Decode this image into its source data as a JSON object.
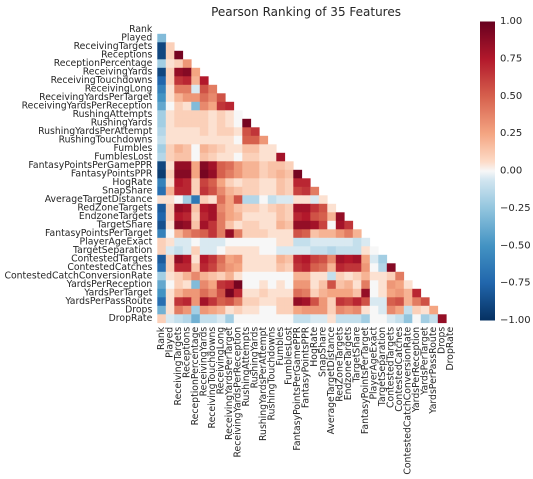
{
  "chart_data": {
    "type": "heatmap",
    "title": "Pearson Ranking of 35 Features",
    "features": [
      "Rank",
      "Played",
      "ReceivingTargets",
      "Receptions",
      "ReceptionPercentage",
      "ReceivingYards",
      "ReceivingTouchdowns",
      "ReceivingLong",
      "ReceivingYardsPerTarget",
      "ReceivingYardsPerReception",
      "RushingAttempts",
      "RushingYards",
      "RushingYardsPerAttempt",
      "RushingTouchdowns",
      "Fumbles",
      "FumblesLost",
      "FantasyPointsPerGamePPR",
      "FantasyPointsPPR",
      "HogRate",
      "SnapShare",
      "AverageTargetDistance",
      "RedZoneTargets",
      "EndzoneTargets",
      "TargetShare",
      "FantasyPointsPerTarget",
      "PlayerAgeExact",
      "TargetSeparation",
      "ContestedTargets",
      "ContestedCatches",
      "ContestedCatchConversionRate",
      "YardsPerReception",
      "YardsPerTarget",
      "YardsPerPassRoute",
      "Drops",
      "DropRate"
    ],
    "mask": "upper-triangle-and-diagonal",
    "colormap": "RdBu_r",
    "vmin": -1.0,
    "vmax": 1.0,
    "colorbar_ticks": [
      1.0,
      0.75,
      0.5,
      0.25,
      0.0,
      -0.25,
      -0.5,
      -0.75,
      -1.0
    ],
    "colorbar_tick_labels": [
      "1.00",
      "0.75",
      "0.50",
      "0.25",
      "0.00",
      "−0.25",
      "−0.50",
      "−0.75",
      "−1.00"
    ],
    "values_lower_triangle": [
      [],
      [
        -0.3
      ],
      [
        -0.9,
        0.1
      ],
      [
        -0.9,
        0.1,
        0.95
      ],
      [
        -0.2,
        0.05,
        0.1,
        0.3
      ],
      [
        -0.9,
        0.1,
        0.85,
        0.9,
        0.25
      ],
      [
        -0.75,
        0.1,
        0.65,
        0.7,
        0.2,
        0.75
      ],
      [
        -0.6,
        0.05,
        0.4,
        0.4,
        -0.05,
        0.55,
        0.4
      ],
      [
        -0.5,
        0.05,
        0.2,
        0.3,
        0.3,
        0.45,
        0.35,
        0.55
      ],
      [
        -0.4,
        0.0,
        0.1,
        0.05,
        -0.3,
        0.35,
        0.25,
        0.65,
        0.7
      ],
      [
        -0.2,
        0.05,
        0.1,
        0.1,
        0.1,
        0.1,
        0.05,
        0.1,
        0.05,
        0.0
      ],
      [
        -0.2,
        0.05,
        0.1,
        0.1,
        0.1,
        0.1,
        0.05,
        0.1,
        0.05,
        0.0,
        0.95
      ],
      [
        -0.15,
        0.05,
        0.05,
        0.05,
        0.05,
        0.1,
        0.05,
        0.1,
        0.1,
        0.05,
        0.55,
        0.65
      ],
      [
        -0.1,
        0.05,
        0.05,
        0.05,
        0.05,
        0.05,
        0.05,
        0.05,
        0.05,
        0.0,
        0.5,
        0.5,
        0.3
      ],
      [
        -0.2,
        0.1,
        0.2,
        0.15,
        0.0,
        0.2,
        0.15,
        0.1,
        0.05,
        0.05,
        0.15,
        0.15,
        0.05,
        0.05
      ],
      [
        -0.15,
        0.1,
        0.15,
        0.15,
        0.0,
        0.15,
        0.1,
        0.05,
        0.05,
        0.0,
        0.1,
        0.1,
        0.05,
        0.05,
        0.8
      ],
      [
        -0.9,
        0.05,
        0.85,
        0.85,
        0.25,
        0.9,
        0.8,
        0.5,
        0.45,
        0.3,
        0.2,
        0.2,
        0.1,
        0.15,
        0.15,
        0.1
      ],
      [
        -0.95,
        0.1,
        0.9,
        0.9,
        0.25,
        0.95,
        0.85,
        0.5,
        0.4,
        0.3,
        0.2,
        0.2,
        0.1,
        0.15,
        0.2,
        0.15,
        0.95
      ],
      [
        -0.6,
        0.05,
        0.75,
        0.7,
        0.1,
        0.6,
        0.5,
        0.25,
        0.1,
        0.05,
        0.1,
        0.1,
        0.05,
        0.05,
        0.15,
        0.1,
        0.7,
        0.7
      ],
      [
        -0.7,
        0.2,
        0.7,
        0.7,
        0.1,
        0.65,
        0.55,
        0.35,
        0.2,
        0.15,
        0.1,
        0.1,
        0.05,
        0.05,
        0.15,
        0.1,
        0.6,
        0.65,
        0.4
      ],
      [
        0.05,
        0.05,
        0.0,
        -0.2,
        -0.65,
        0.1,
        0.05,
        0.45,
        0.25,
        0.55,
        -0.15,
        -0.15,
        0.0,
        -0.1,
        -0.05,
        -0.05,
        0.05,
        0.05,
        -0.05,
        0.05
      ],
      [
        -0.8,
        0.1,
        0.85,
        0.8,
        0.15,
        0.75,
        0.8,
        0.35,
        0.25,
        0.15,
        0.1,
        0.1,
        0.05,
        0.1,
        0.15,
        0.1,
        0.8,
        0.8,
        0.65,
        0.55,
        0.05
      ],
      [
        -0.75,
        0.1,
        0.75,
        0.7,
        0.1,
        0.7,
        0.8,
        0.4,
        0.25,
        0.2,
        0.05,
        0.05,
        0.05,
        0.05,
        0.15,
        0.1,
        0.7,
        0.75,
        0.55,
        0.5,
        0.2,
        0.85
      ],
      [
        -0.85,
        0.05,
        0.9,
        0.85,
        0.15,
        0.8,
        0.65,
        0.4,
        0.15,
        0.05,
        0.1,
        0.1,
        0.05,
        0.05,
        0.2,
        0.15,
        0.85,
        0.85,
        0.8,
        0.6,
        0.0,
        0.8,
        0.65
      ],
      [
        -0.6,
        0.0,
        0.2,
        0.35,
        0.45,
        0.5,
        0.65,
        0.4,
        0.85,
        0.4,
        0.1,
        0.1,
        0.1,
        0.05,
        0.05,
        0.05,
        0.55,
        0.5,
        0.15,
        0.2,
        0.2,
        0.3,
        0.4,
        0.2
      ],
      [
        0.1,
        0.05,
        -0.05,
        -0.05,
        0.0,
        -0.05,
        -0.05,
        -0.05,
        0.0,
        0.0,
        0.0,
        0.0,
        0.0,
        0.0,
        0.05,
        0.05,
        -0.1,
        -0.1,
        -0.05,
        -0.05,
        -0.05,
        -0.05,
        -0.05,
        -0.1,
        -0.05
      ],
      [
        0.1,
        -0.05,
        -0.1,
        -0.05,
        0.1,
        -0.05,
        -0.05,
        0.0,
        0.05,
        0.05,
        0.05,
        0.05,
        0.0,
        0.0,
        -0.05,
        -0.05,
        -0.05,
        -0.05,
        -0.1,
        -0.1,
        -0.15,
        -0.1,
        -0.1,
        -0.1,
        0.05,
        0.0
      ],
      [
        -0.8,
        0.1,
        0.85,
        0.75,
        0.05,
        0.75,
        0.65,
        0.45,
        0.25,
        0.3,
        0.05,
        0.05,
        0.05,
        0.05,
        0.2,
        0.15,
        0.7,
        0.75,
        0.6,
        0.55,
        0.35,
        0.8,
        0.75,
        0.8,
        0.25,
        -0.05,
        -0.2
      ],
      [
        -0.7,
        0.1,
        0.7,
        0.7,
        0.15,
        0.7,
        0.6,
        0.4,
        0.3,
        0.25,
        0.05,
        0.05,
        0.05,
        0.05,
        0.15,
        0.1,
        0.65,
        0.7,
        0.5,
        0.45,
        0.2,
        0.7,
        0.65,
        0.65,
        0.3,
        0.0,
        -0.15,
        0.9
      ],
      [
        -0.2,
        0.05,
        0.1,
        0.2,
        0.35,
        0.2,
        0.15,
        0.1,
        0.2,
        0.05,
        0.0,
        0.0,
        0.0,
        0.0,
        0.0,
        0.0,
        0.2,
        0.2,
        0.05,
        0.05,
        -0.1,
        0.1,
        0.05,
        0.1,
        0.2,
        0.05,
        0.05,
        0.1,
        0.4
      ],
      [
        -0.4,
        0.0,
        0.1,
        0.05,
        -0.3,
        0.35,
        0.25,
        0.65,
        0.7,
        0.95,
        0.0,
        0.0,
        0.05,
        0.0,
        0.05,
        0.0,
        0.3,
        0.3,
        0.05,
        0.15,
        0.55,
        0.15,
        0.2,
        0.05,
        0.4,
        0.0,
        0.05,
        0.3,
        0.25,
        0.05
      ],
      [
        -0.5,
        0.05,
        0.2,
        0.3,
        0.3,
        0.45,
        0.35,
        0.55,
        0.95,
        0.7,
        0.05,
        0.05,
        0.1,
        0.05,
        0.05,
        0.05,
        0.45,
        0.4,
        0.1,
        0.2,
        0.25,
        0.25,
        0.25,
        0.15,
        0.85,
        0.0,
        0.05,
        0.25,
        0.3,
        0.2,
        0.7
      ],
      [
        -0.7,
        0.05,
        0.65,
        0.7,
        0.3,
        0.8,
        0.65,
        0.5,
        0.55,
        0.4,
        0.1,
        0.1,
        0.05,
        0.05,
        0.1,
        0.1,
        0.85,
        0.8,
        0.55,
        0.3,
        0.1,
        0.65,
        0.6,
        0.7,
        0.55,
        -0.05,
        -0.05,
        0.5,
        0.55,
        0.2,
        0.4,
        0.55
      ],
      [
        -0.35,
        0.05,
        0.4,
        0.3,
        -0.2,
        0.3,
        0.25,
        0.2,
        0.05,
        0.1,
        0.05,
        0.05,
        0.0,
        0.0,
        0.1,
        0.1,
        0.25,
        0.3,
        0.3,
        0.3,
        0.1,
        0.35,
        0.3,
        0.35,
        0.05,
        0.0,
        -0.05,
        0.35,
        0.25,
        -0.1,
        0.1,
        0.05,
        0.25
      ],
      [
        0.1,
        -0.05,
        -0.1,
        -0.15,
        -0.35,
        -0.1,
        -0.1,
        -0.05,
        -0.2,
        0.0,
        0.0,
        0.0,
        0.0,
        0.0,
        0.0,
        0.0,
        -0.1,
        -0.1,
        -0.05,
        -0.05,
        0.05,
        -0.1,
        -0.1,
        -0.1,
        -0.2,
        0.0,
        0.0,
        -0.05,
        -0.1,
        -0.25,
        0.0,
        -0.2,
        -0.1,
        0.85
      ]
    ]
  }
}
